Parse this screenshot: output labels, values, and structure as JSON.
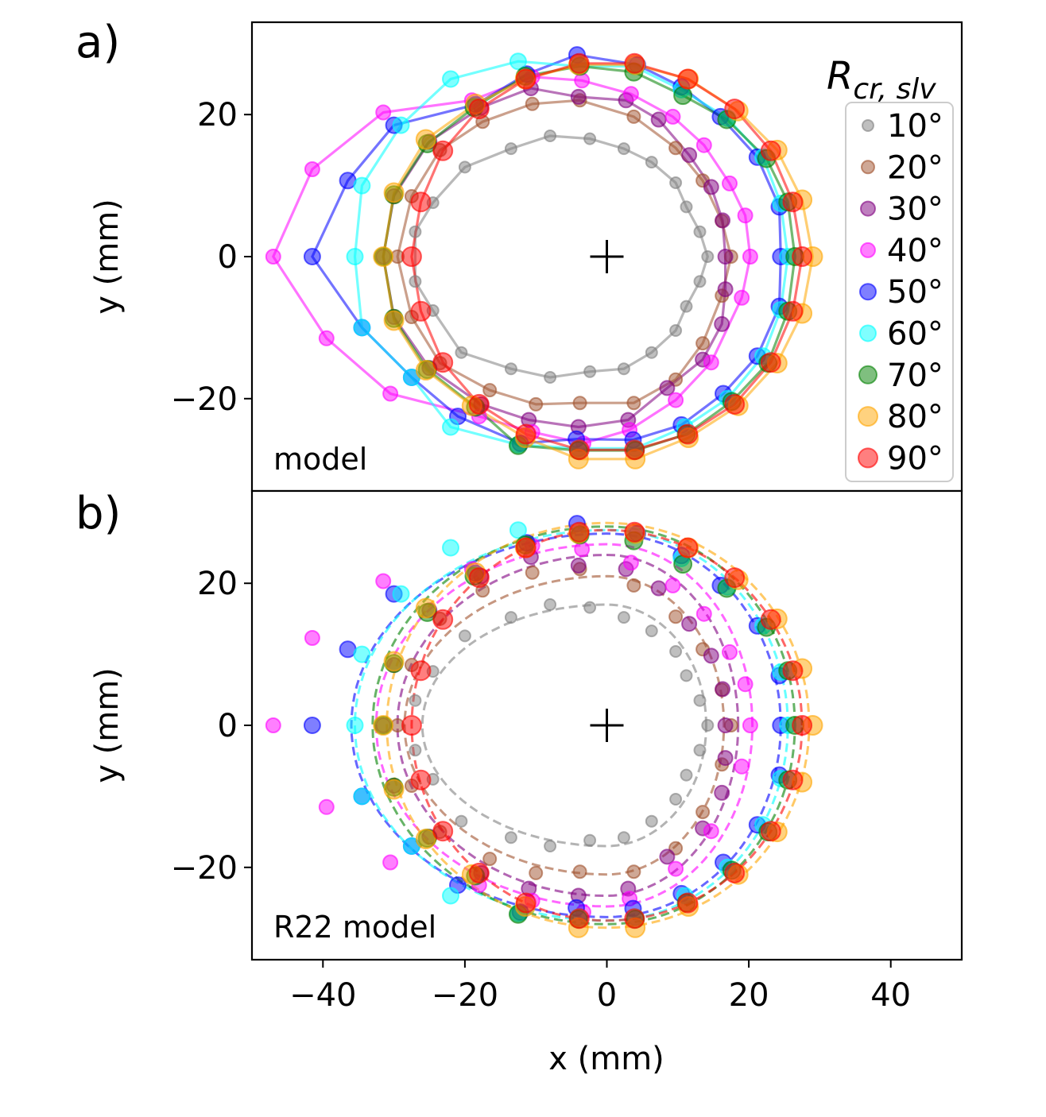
{
  "figure": {
    "xlabel": "x (mm)",
    "ylabel_a": "y (mm)",
    "ylabel_b": "y (mm)"
  },
  "chart_data": [
    {
      "type": "scatter",
      "panel": "a)",
      "annotation": "model",
      "xlim": [
        -50,
        50
      ],
      "ylim": [
        -33,
        33
      ],
      "xticks": [
        -40,
        -20,
        0,
        20,
        40
      ],
      "yticks": [
        -20,
        0,
        20
      ],
      "xticklabels": [
        "−40",
        "−20",
        "0",
        "20",
        "40"
      ],
      "yticklabels": [
        "−20",
        "0",
        "20"
      ],
      "center_marker": "+",
      "center": [
        0,
        0
      ],
      "fit_style": "solid",
      "legend": {
        "title": "R_{cr, slv}",
        "title_main": "R",
        "title_sub": "cr, slv",
        "position": "right",
        "entries": [
          "10°",
          "20°",
          "30°",
          "40°",
          "50°",
          "60°",
          "70°",
          "80°",
          "90°"
        ]
      }
    },
    {
      "type": "scatter",
      "panel": "b)",
      "annotation": "R22 model",
      "xlim": [
        -50,
        50
      ],
      "ylim": [
        -33,
        33
      ],
      "xticks": [
        -40,
        -20,
        0,
        20,
        40
      ],
      "yticks": [
        -20,
        0,
        20
      ],
      "xticklabels": [
        "−40",
        "−20",
        "0",
        "20",
        "40"
      ],
      "yticklabels": [
        "−20",
        "0",
        "20"
      ],
      "center_marker": "+",
      "center": [
        0,
        0
      ],
      "fit_style": "dashed"
    }
  ],
  "series": [
    {
      "name": "10°",
      "color": "#808080",
      "rx_left": 26,
      "rx_right": 14,
      "ry": 17,
      "size": 7,
      "points": [
        [
          14.2,
          0
        ],
        [
          13.1,
          3.5
        ],
        [
          11.2,
          7
        ],
        [
          9.7,
          10.4
        ],
        [
          6.3,
          13.3
        ],
        [
          2.4,
          15.2
        ],
        [
          -2.4,
          16.6
        ],
        [
          -8,
          17
        ],
        [
          -13.5,
          15.2
        ],
        [
          -20,
          12.6
        ],
        [
          -24.5,
          7.6
        ],
        [
          -27,
          3.5
        ],
        [
          -27,
          -3.5
        ],
        [
          -24.5,
          -7.6
        ],
        [
          -20.5,
          -13.5
        ],
        [
          -13.5,
          -15.8
        ],
        [
          -8,
          -17
        ],
        [
          -2.4,
          -16.2
        ],
        [
          2.4,
          -15.8
        ],
        [
          6.3,
          -13.5
        ],
        [
          9.7,
          -10.4
        ],
        [
          11.2,
          -7
        ],
        [
          13.1,
          -3.5
        ]
      ]
    },
    {
      "name": "20°",
      "color": "#A0522D",
      "rx_left": 28.5,
      "rx_right": 16.5,
      "ry": 21,
      "size": 8,
      "points": [
        [
          17.5,
          0
        ],
        [
          16.2,
          5
        ],
        [
          13.5,
          10.7
        ],
        [
          9.7,
          15.3
        ],
        [
          3.8,
          19.7
        ],
        [
          -3.8,
          22
        ],
        [
          -10.5,
          21.5
        ],
        [
          -17.5,
          19
        ],
        [
          -23.5,
          15
        ],
        [
          -27.5,
          8.5
        ],
        [
          -29.5,
          0
        ],
        [
          -27.5,
          -8.5
        ],
        [
          -23.5,
          -15
        ],
        [
          -16.5,
          -18.8
        ],
        [
          -10,
          -20.8
        ],
        [
          -3.8,
          -20.6
        ],
        [
          3.8,
          -20.6
        ],
        [
          9.7,
          -17.3
        ],
        [
          13.5,
          -12.2
        ],
        [
          16.2,
          -5.5
        ]
      ]
    },
    {
      "name": "30°",
      "color": "#800080",
      "rx_left": 29.5,
      "rx_right": 18.5,
      "ry": 24,
      "size": 9,
      "points": [
        [
          16.7,
          0
        ],
        [
          16.3,
          5.1
        ],
        [
          14.7,
          9.8
        ],
        [
          11.6,
          14.3
        ],
        [
          7.3,
          19.3
        ],
        [
          2.7,
          22
        ],
        [
          -4,
          22.5
        ],
        [
          -10.7,
          23.7
        ],
        [
          -17.7,
          21
        ],
        [
          -25,
          16.2
        ],
        [
          -30,
          8.5
        ],
        [
          -31.5,
          0
        ],
        [
          -30,
          -8.5
        ],
        [
          -25,
          -15.7
        ],
        [
          -17.7,
          -20.8
        ],
        [
          -11,
          -23
        ],
        [
          -4,
          -24
        ],
        [
          3,
          -23
        ],
        [
          8.5,
          -18.5
        ],
        [
          13.5,
          -14.5
        ],
        [
          16.2,
          -9.5
        ],
        [
          16.7,
          -4.6
        ]
      ]
    },
    {
      "name": "40°",
      "color": "#FF00FF",
      "rx_left": 32.5,
      "rx_right": 20.5,
      "ry": 25.5,
      "size": 9,
      "points": [
        [
          20.2,
          0
        ],
        [
          19.5,
          5.8
        ],
        [
          17.3,
          10.3
        ],
        [
          13.7,
          15.7
        ],
        [
          9.3,
          19.7
        ],
        [
          3.4,
          22.9
        ],
        [
          -3.5,
          24.8
        ],
        [
          -10.5,
          25.3
        ],
        [
          -19,
          22
        ],
        [
          -31.5,
          20.3
        ],
        [
          -41.5,
          12.3
        ],
        [
          -47,
          0
        ],
        [
          -39.5,
          -11.5
        ],
        [
          -30.5,
          -19.3
        ],
        [
          -18,
          -22.5
        ],
        [
          -10.5,
          -24.7
        ],
        [
          -3.3,
          -26.3
        ],
        [
          3.2,
          -24.4
        ],
        [
          9.7,
          -20.2
        ],
        [
          14.7,
          -14.9
        ],
        [
          19,
          -5.8
        ]
      ]
    },
    {
      "name": "50°",
      "color": "#0000FF",
      "rx_left": 36,
      "rx_right": 24.5,
      "ry": 27,
      "size": 10,
      "points": [
        [
          24.5,
          0
        ],
        [
          24.3,
          7
        ],
        [
          21.2,
          14
        ],
        [
          16,
          19.7
        ],
        [
          10.5,
          23.9
        ],
        [
          4.3,
          27
        ],
        [
          -4.2,
          28.4
        ],
        [
          -11.3,
          25.7
        ],
        [
          -18.5,
          21.4
        ],
        [
          -30,
          18.5
        ],
        [
          -36.5,
          10.7
        ],
        [
          -41.5,
          0
        ],
        [
          -34.5,
          -10
        ],
        [
          -27.5,
          -17
        ],
        [
          -21,
          -22.5
        ],
        [
          -12.2,
          -26.3
        ],
        [
          -4.3,
          -25.7
        ],
        [
          3.7,
          -25.8
        ],
        [
          10.5,
          -23.7
        ],
        [
          16.4,
          -19.3
        ],
        [
          21.2,
          -14
        ],
        [
          24.3,
          -7
        ]
      ]
    },
    {
      "name": "60°",
      "color": "#00FFFF",
      "rx_left": 35.5,
      "rx_right": 25.5,
      "ry": 27.5,
      "size": 10,
      "points": [
        [
          25.5,
          0
        ],
        [
          24.5,
          7.5
        ],
        [
          22,
          14
        ],
        [
          17,
          19.5
        ],
        [
          10.5,
          23.5
        ],
        [
          3.8,
          26.8
        ],
        [
          -4,
          26.8
        ],
        [
          -12.5,
          27.5
        ],
        [
          -22,
          25
        ],
        [
          -29,
          18.5
        ],
        [
          -34.5,
          10
        ],
        [
          -35.5,
          0
        ],
        [
          -34.5,
          -10
        ],
        [
          -27.5,
          -17
        ],
        [
          -22,
          -24
        ],
        [
          -12.5,
          -26.5
        ],
        [
          -4,
          -27
        ],
        [
          4,
          -27
        ],
        [
          11,
          -24
        ],
        [
          17,
          -20
        ],
        [
          22,
          -14
        ],
        [
          24.5,
          -7.5
        ]
      ]
    },
    {
      "name": "70°",
      "color": "#008000",
      "rx_left": 33,
      "rx_right": 26.5,
      "ry": 28,
      "size": 11,
      "points": [
        [
          26.5,
          0
        ],
        [
          25.5,
          7.7
        ],
        [
          22.5,
          13.8
        ],
        [
          16.9,
          19.3
        ],
        [
          10.7,
          22.7
        ],
        [
          3.8,
          26
        ],
        [
          -3.8,
          26.8
        ],
        [
          -11.5,
          25.4
        ],
        [
          -18.7,
          21
        ],
        [
          -25.3,
          15.9
        ],
        [
          -30,
          8.7
        ],
        [
          -31.5,
          0
        ],
        [
          -30,
          -8.7
        ],
        [
          -25.3,
          -15.9
        ],
        [
          -18.5,
          -21.2
        ],
        [
          -12.5,
          -26.6
        ],
        [
          -4,
          -27.3
        ],
        [
          4,
          -27.3
        ],
        [
          11.2,
          -25
        ],
        [
          17.6,
          -20.4
        ],
        [
          22.7,
          -15
        ],
        [
          25.5,
          -7.7
        ]
      ]
    },
    {
      "name": "80°",
      "color": "#FFA500",
      "rx_left": 31,
      "rx_right": 28.5,
      "ry": 28.5,
      "size": 12,
      "points": [
        [
          29,
          0
        ],
        [
          27.5,
          8
        ],
        [
          24,
          15
        ],
        [
          18.5,
          20.5
        ],
        [
          11.5,
          25
        ],
        [
          4,
          27
        ],
        [
          -4,
          27
        ],
        [
          -11.5,
          25
        ],
        [
          -18.5,
          21.5
        ],
        [
          -25.5,
          16.5
        ],
        [
          -30,
          9
        ],
        [
          -31.5,
          0
        ],
        [
          -30,
          -9
        ],
        [
          -25.5,
          -16
        ],
        [
          -19,
          -21
        ],
        [
          -11.5,
          -25.5
        ],
        [
          -4,
          -28.5
        ],
        [
          4,
          -28.5
        ],
        [
          11.5,
          -25.5
        ],
        [
          18.5,
          -21
        ],
        [
          24,
          -15
        ],
        [
          27.5,
          -8
        ]
      ]
    },
    {
      "name": "90°",
      "color": "#FF0000",
      "rx_left": 27.5,
      "rx_right": 27.5,
      "ry": 27.5,
      "size": 12,
      "points": [
        [
          27.5,
          0
        ],
        [
          26.2,
          7.7
        ],
        [
          23.1,
          14.9
        ],
        [
          18,
          20.8
        ],
        [
          11.4,
          25
        ],
        [
          3.9,
          27.2
        ],
        [
          -3.9,
          27.2
        ],
        [
          -11.4,
          25
        ],
        [
          -18,
          20.8
        ],
        [
          -23.1,
          14.9
        ],
        [
          -26.2,
          7.7
        ],
        [
          -27.5,
          0
        ],
        [
          -26.2,
          -7.7
        ],
        [
          -23.1,
          -14.9
        ],
        [
          -18,
          -20.8
        ],
        [
          -11.4,
          -25
        ],
        [
          -3.9,
          -27.2
        ],
        [
          3.9,
          -27.2
        ],
        [
          11.4,
          -25
        ],
        [
          18,
          -20.8
        ],
        [
          23.1,
          -14.9
        ],
        [
          26.2,
          -7.7
        ]
      ]
    }
  ]
}
